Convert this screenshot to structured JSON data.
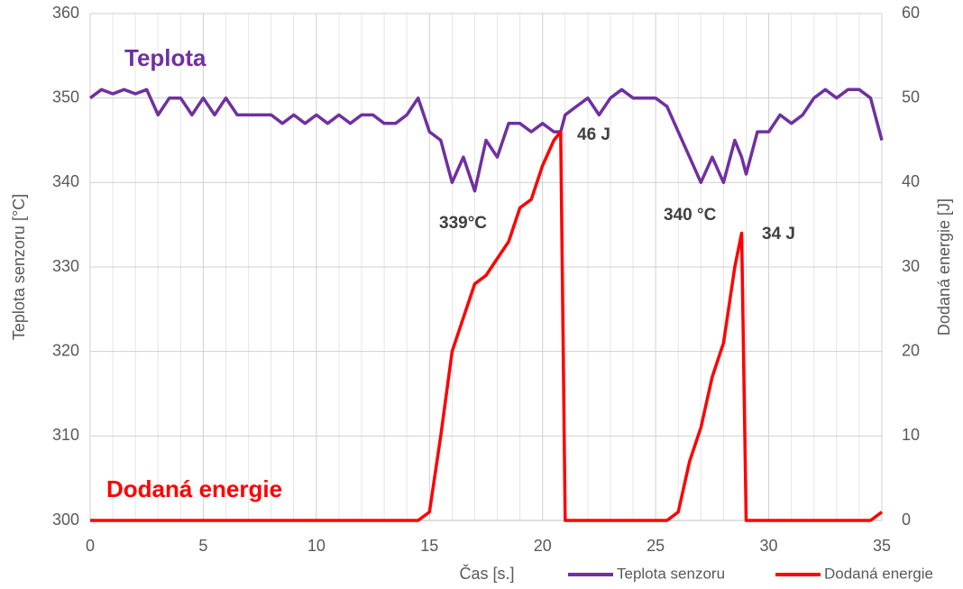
{
  "chart_data": {
    "type": "line",
    "x_label": "Čas [s.]",
    "y_label": "Teplota senzoru [°C]",
    "y2_label": "Dodaná energie [J]",
    "x": [
      0,
      0.5,
      1,
      1.5,
      2,
      2.5,
      3,
      3.5,
      4,
      4.5,
      5,
      5.5,
      6,
      6.5,
      7,
      7.5,
      8,
      8.5,
      9,
      9.5,
      10,
      10.5,
      11,
      11.5,
      12,
      12.5,
      13,
      13.5,
      14,
      14.5,
      15,
      15.5,
      16,
      16.5,
      17,
      17.5,
      18,
      18.5,
      19,
      19.5,
      20,
      20.5,
      20.8,
      21,
      21.5,
      22,
      22.5,
      23,
      23.5,
      24,
      24.5,
      25,
      25.5,
      26,
      26.5,
      27,
      27.5,
      28,
      28.5,
      28.8,
      29,
      29.5,
      30,
      30.5,
      31,
      31.5,
      32,
      32.5,
      33,
      33.5,
      34,
      34.5,
      35
    ],
    "series": [
      {
        "name": "Teplota senzoru",
        "color": "#7030a0",
        "values": [
          350,
          351,
          350.5,
          351,
          350.5,
          351,
          348,
          350,
          350,
          348,
          350,
          348,
          350,
          348,
          348,
          348,
          348,
          347,
          348,
          347,
          348,
          347,
          348,
          347,
          348,
          348,
          347,
          347,
          348,
          350,
          346,
          345,
          340,
          343,
          339,
          345,
          343,
          347,
          347,
          346,
          347,
          346,
          346,
          348,
          349,
          350,
          348,
          350,
          351,
          350,
          350,
          350,
          349,
          346,
          343,
          340,
          343,
          340,
          345,
          343,
          341,
          346,
          346,
          348,
          347,
          348,
          350,
          351,
          350,
          351,
          351,
          350,
          345
        ]
      },
      {
        "name": "Dodaná energie",
        "color": "#ff0000",
        "axis": "y2",
        "values": [
          0,
          0,
          0,
          0,
          0,
          0,
          0,
          0,
          0,
          0,
          0,
          0,
          0,
          0,
          0,
          0,
          0,
          0,
          0,
          0,
          0,
          0,
          0,
          0,
          0,
          0,
          0,
          0,
          0,
          0,
          1,
          10,
          20,
          24,
          28,
          29,
          31,
          33,
          37,
          38,
          42,
          45,
          46,
          0,
          0,
          0,
          0,
          0,
          0,
          0,
          0,
          0,
          0,
          1,
          7,
          11,
          17,
          21,
          30,
          34,
          0,
          0,
          0,
          0,
          0,
          0,
          0,
          0,
          0,
          0,
          0,
          0,
          1
        ]
      }
    ],
    "annotations": [
      "Teplota",
      "Dodaná energie",
      "339°C",
      "340 °C",
      "46 J",
      "34 J"
    ],
    "xlim": [
      0,
      35
    ],
    "xticks": [
      0,
      5,
      10,
      15,
      20,
      25,
      30,
      35
    ],
    "xminorticks": [
      1,
      2,
      3,
      4,
      6,
      7,
      8,
      9,
      11,
      12,
      13,
      14,
      16,
      17,
      18,
      19,
      21,
      22,
      23,
      24,
      26,
      27,
      28,
      29,
      31,
      32,
      33,
      34
    ],
    "ylim": [
      300,
      360
    ],
    "yticks": [
      300,
      310,
      320,
      330,
      340,
      350,
      360
    ],
    "y2lim": [
      0,
      60
    ],
    "y2ticks": [
      0,
      10,
      20,
      30,
      40,
      50,
      60
    ],
    "grid": true,
    "legend": "bottom-right"
  }
}
